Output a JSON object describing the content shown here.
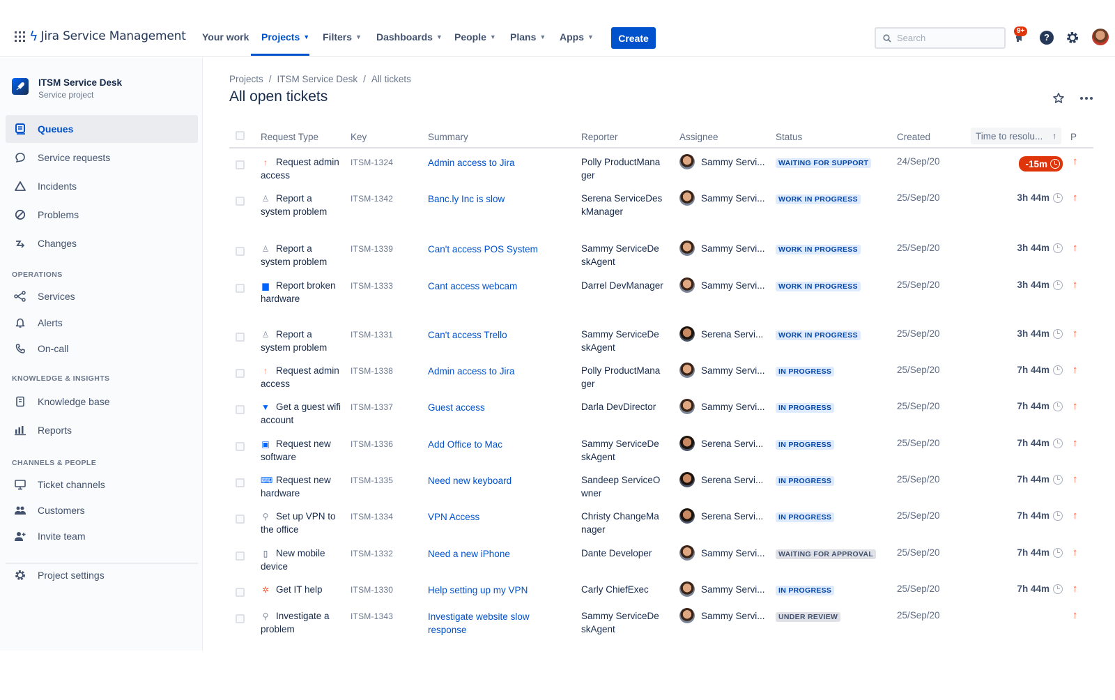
{
  "topnav": {
    "logo_text": "Jira Service Management",
    "items": [
      {
        "label": "Your work"
      },
      {
        "label": "Projects"
      },
      {
        "label": "Filters"
      },
      {
        "label": "Dashboards"
      },
      {
        "label": "People"
      },
      {
        "label": "Plans"
      },
      {
        "label": "Apps"
      }
    ],
    "create_label": "Create",
    "search_placeholder": "Search",
    "notification_badge": "9+"
  },
  "sidebar": {
    "project_name": "ITSM Service Desk",
    "project_type": "Service project",
    "items": [
      {
        "label": "Queues",
        "icon": "queues-icon"
      },
      {
        "label": "Service requests",
        "icon": "chat-icon"
      },
      {
        "label": "Incidents",
        "icon": "warning-triangle-icon"
      },
      {
        "label": "Problems",
        "icon": "blocked-icon"
      },
      {
        "label": "Changes",
        "icon": "changes-icon"
      }
    ],
    "operations_heading": "OPERATIONS",
    "operations": [
      {
        "label": "Services",
        "icon": "services-icon"
      },
      {
        "label": "Alerts",
        "icon": "bell-icon"
      },
      {
        "label": "On-call",
        "icon": "phone-icon"
      }
    ],
    "knowledge_heading": "KNOWLEDGE & INSIGHTS",
    "knowledge": [
      {
        "label": "Knowledge base",
        "icon": "book-icon"
      },
      {
        "label": "Reports",
        "icon": "bar-chart-icon"
      }
    ],
    "channels_heading": "CHANNELS & PEOPLE",
    "channels": [
      {
        "label": "Ticket channels",
        "icon": "monitor-icon"
      },
      {
        "label": "Customers",
        "icon": "people-icon"
      },
      {
        "label": "Invite team",
        "icon": "add-person-icon"
      }
    ],
    "settings_label": "Project settings"
  },
  "breadcrumb": [
    "Projects",
    "ITSM Service Desk",
    "All tickets"
  ],
  "page_title": "All open tickets",
  "columns": {
    "request_type": "Request Type",
    "key": "Key",
    "summary": "Summary",
    "reporter": "Reporter",
    "assignee": "Assignee",
    "status": "Status",
    "created": "Created",
    "time_to_resolution": "Time to resolu...",
    "priority": "P"
  },
  "rows": [
    {
      "type": "Request admin access",
      "type_icon": "arrow-up-request-icon",
      "key": "ITSM-1324",
      "summary": "Admin access to Jira",
      "reporter": "Polly ProductManager",
      "assignee": "Sammy Servi...",
      "status": "WAITING FOR SUPPORT",
      "status_color": "blue",
      "created": "24/Sep/20",
      "time": "-15m",
      "overdue": true
    },
    {
      "type": "Report a system problem",
      "type_icon": "person-icon",
      "key": "ITSM-1342",
      "summary": "Banc.ly Inc is slow",
      "reporter": "Serena ServiceDeskManager",
      "assignee": "Sammy Servi...",
      "status": "WORK IN PROGRESS",
      "status_color": "blue",
      "created": "25/Sep/20",
      "time": "3h 44m"
    },
    {
      "type": "Report a system problem",
      "type_icon": "person-icon",
      "key": "ITSM-1339",
      "summary": "Can't access POS System",
      "reporter": "Sammy ServiceDeskAgent",
      "assignee": "Sammy Servi...",
      "status": "WORK IN PROGRESS",
      "status_color": "blue",
      "created": "25/Sep/20",
      "time": "3h 44m"
    },
    {
      "type": "Report broken hardware",
      "type_icon": "hardware-icon",
      "key": "ITSM-1333",
      "summary": "Cant access webcam",
      "reporter": "Darrel DevManager",
      "assignee": "Sammy Servi...",
      "status": "WORK IN PROGRESS",
      "status_color": "blue",
      "created": "25/Sep/20",
      "time": "3h 44m"
    },
    {
      "type": "Report a system problem",
      "type_icon": "person-icon",
      "key": "ITSM-1331",
      "summary": "Can't access Trello",
      "reporter": "Sammy ServiceDeskAgent",
      "assignee": "Serena Servi...",
      "status": "WORK IN PROGRESS",
      "status_color": "blue",
      "created": "25/Sep/20",
      "time": "3h 44m"
    },
    {
      "type": "Request admin access",
      "type_icon": "arrow-up-request-icon",
      "key": "ITSM-1338",
      "summary": "Admin access to Jira",
      "reporter": "Polly ProductManager",
      "assignee": "Sammy Servi...",
      "status": "IN PROGRESS",
      "status_color": "blue",
      "created": "25/Sep/20",
      "time": "7h 44m"
    },
    {
      "type": "Get a guest wifi account",
      "type_icon": "wifi-icon",
      "key": "ITSM-1337",
      "summary": "Guest access",
      "reporter": "Darla DevDirector",
      "assignee": "Sammy Servi...",
      "status": "IN PROGRESS",
      "status_color": "blue",
      "created": "25/Sep/20",
      "time": "7h 44m"
    },
    {
      "type": "Request new software",
      "type_icon": "software-icon",
      "key": "ITSM-1336",
      "summary": "Add Office to Mac",
      "reporter": "Sammy ServiceDeskAgent",
      "assignee": "Serena Servi...",
      "status": "IN PROGRESS",
      "status_color": "blue",
      "created": "25/Sep/20",
      "time": "7h 44m"
    },
    {
      "type": "Request new hardware",
      "type_icon": "new-hardware-icon",
      "key": "ITSM-1335",
      "summary": "Need new keyboard",
      "reporter": "Sandeep ServiceOwner",
      "assignee": "Serena Servi...",
      "status": "IN PROGRESS",
      "status_color": "blue",
      "created": "25/Sep/20",
      "time": "7h 44m"
    },
    {
      "type": "Set up VPN to the office",
      "type_icon": "vpn-icon",
      "key": "ITSM-1334",
      "summary": "VPN Access",
      "reporter": "Christy ChangeManager",
      "assignee": "Serena Servi...",
      "status": "IN PROGRESS",
      "status_color": "blue",
      "created": "25/Sep/20",
      "time": "7h 44m"
    },
    {
      "type": "New mobile device",
      "type_icon": "mobile-icon",
      "key": "ITSM-1332",
      "summary": "Need a new iPhone",
      "reporter": "Dante Developer",
      "assignee": "Sammy Servi...",
      "status": "WAITING FOR APPROVAL",
      "status_color": "grey",
      "created": "25/Sep/20",
      "time": "7h 44m"
    },
    {
      "type": "Get IT help",
      "type_icon": "it-help-icon",
      "key": "ITSM-1330",
      "summary": "Help setting up my VPN",
      "reporter": "Carly ChiefExec",
      "assignee": "Sammy Servi...",
      "status": "IN PROGRESS",
      "status_color": "blue",
      "created": "25/Sep/20",
      "time": "7h 44m"
    },
    {
      "type": "Investigate a problem",
      "type_icon": "investigate-icon",
      "key": "ITSM-1343",
      "summary": "Investigate website slow response",
      "reporter": "Sammy ServiceDeskAgent",
      "assignee": "Sammy Servi...",
      "status": "UNDER REVIEW",
      "status_color": "grey",
      "created": "25/Sep/20",
      "time": ""
    }
  ],
  "colors": {
    "brand": "#0052cc",
    "danger": "#de350b",
    "priority_high": "#ff5630"
  }
}
